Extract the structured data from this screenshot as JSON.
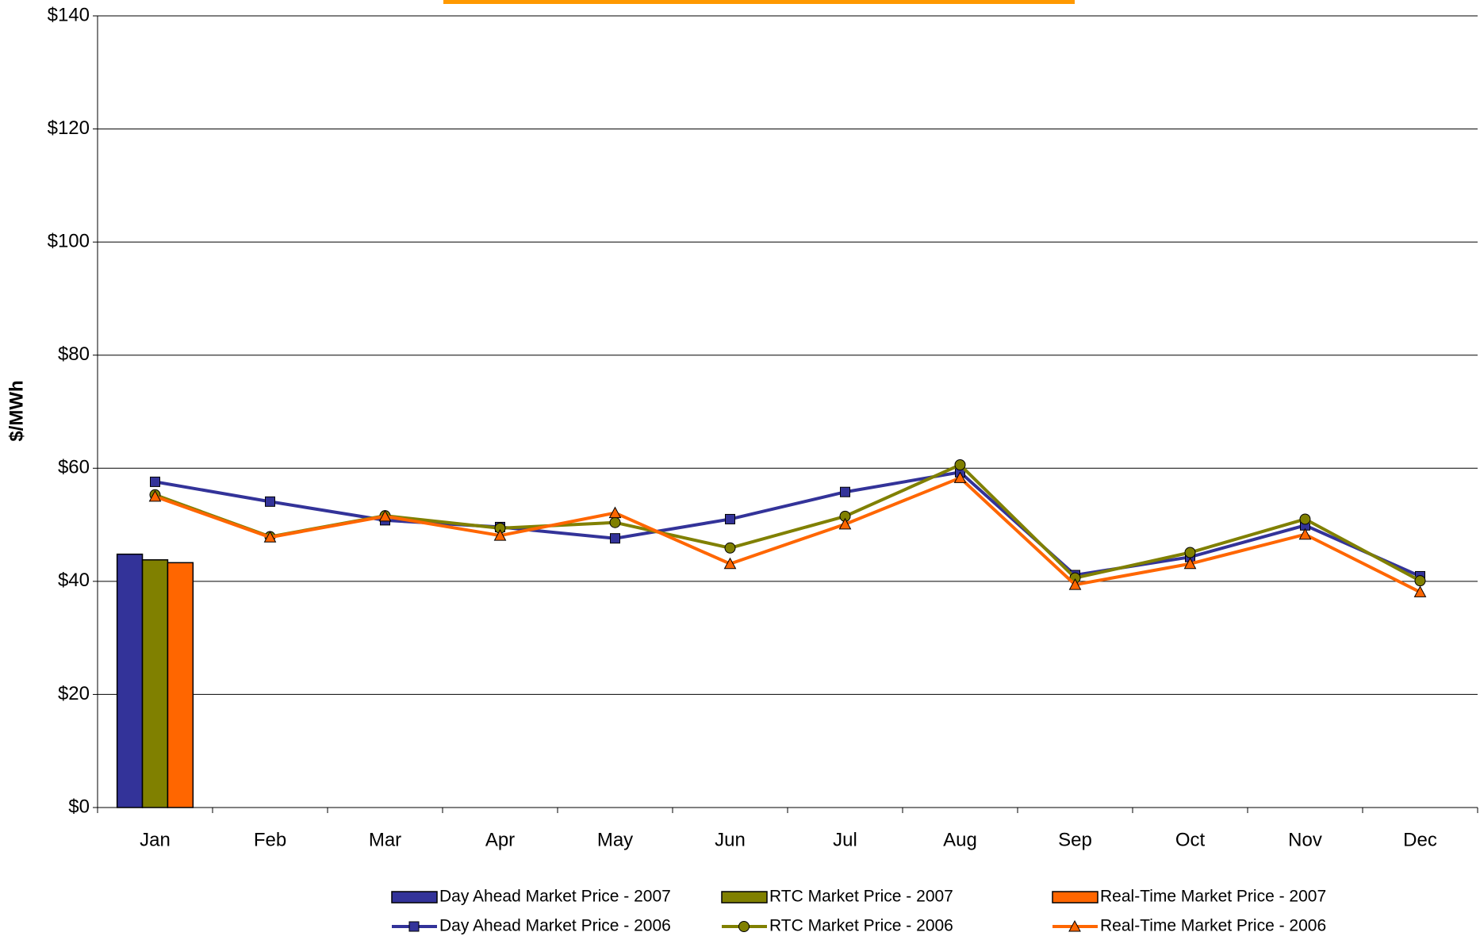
{
  "chart_data": {
    "type": "bar-line",
    "ylabel": "$/MWh",
    "categories": [
      "Jan",
      "Feb",
      "Mar",
      "Apr",
      "May",
      "Jun",
      "Jul",
      "Aug",
      "Sep",
      "Oct",
      "Nov",
      "Dec"
    ],
    "ylim": [
      0,
      140
    ],
    "yticks": [
      {
        "value": 0,
        "label": "$0"
      },
      {
        "value": 20,
        "label": "$20"
      },
      {
        "value": 40,
        "label": "$40"
      },
      {
        "value": 60,
        "label": "$60"
      },
      {
        "value": 80,
        "label": "$80"
      },
      {
        "value": 100,
        "label": "$100"
      },
      {
        "value": 120,
        "label": "$120"
      },
      {
        "value": 140,
        "label": "$140"
      }
    ],
    "grid": true,
    "series": [
      {
        "name": "Day Ahead Market Price - 2007",
        "kind": "bar",
        "color": "#333399",
        "values": [
          44.8,
          null,
          null,
          null,
          null,
          null,
          null,
          null,
          null,
          null,
          null,
          null
        ]
      },
      {
        "name": "RTC Market Price - 2007",
        "kind": "bar",
        "color": "#808000",
        "values": [
          43.8,
          null,
          null,
          null,
          null,
          null,
          null,
          null,
          null,
          null,
          null,
          null
        ]
      },
      {
        "name": "Real-Time Market Price - 2007",
        "kind": "bar",
        "color": "#ff6600",
        "values": [
          43.3,
          null,
          null,
          null,
          null,
          null,
          null,
          null,
          null,
          null,
          null,
          null
        ]
      },
      {
        "name": "Day Ahead Market Price - 2006",
        "kind": "line",
        "marker": "square",
        "color": "#333399",
        "values": [
          57.6,
          54.1,
          50.8,
          49.6,
          47.6,
          51.0,
          55.8,
          59.3,
          41.1,
          44.3,
          49.9,
          40.9
        ]
      },
      {
        "name": "RTC Market Price - 2006",
        "kind": "line",
        "marker": "circle",
        "color": "#808000",
        "values": [
          55.3,
          47.9,
          51.6,
          49.4,
          50.4,
          45.9,
          51.5,
          60.6,
          40.6,
          45.1,
          51.0,
          40.1
        ]
      },
      {
        "name": "Real-Time Market Price - 2006",
        "kind": "line",
        "marker": "triangle",
        "color": "#ff6600",
        "values": [
          55.0,
          47.8,
          51.5,
          48.1,
          52.1,
          43.1,
          50.1,
          58.3,
          39.4,
          43.1,
          48.3,
          38.1
        ]
      }
    ]
  }
}
